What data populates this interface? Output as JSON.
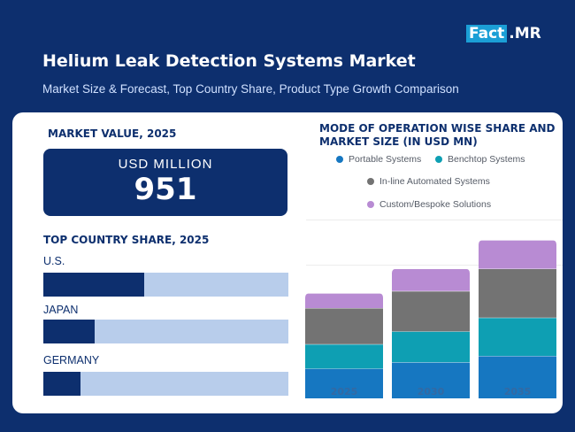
{
  "brand": {
    "logo_part1": "Fact",
    "logo_part2": ".MR"
  },
  "header": {
    "title": "Helium Leak Detection Systems Market",
    "subtitle": "Market Size & Forecast, Top Country Share, Product Type Growth Comparison"
  },
  "market_value": {
    "heading": "MARKET VALUE, 2025",
    "unit": "USD MILLION",
    "value": "951"
  },
  "country_share": {
    "heading": "TOP COUNTRY SHARE, 2025",
    "countries": [
      {
        "name": "U.S.",
        "share": 0.41
      },
      {
        "name": "JAPAN",
        "share": 0.21
      },
      {
        "name": "GERMANY",
        "share": 0.15
      }
    ]
  },
  "operation_chart": {
    "heading_line1": "MODE OF OPERATION WISE SHARE AND",
    "heading_line2": "MARKET SIZE (IN USD MN)"
  },
  "colors": {
    "navy": "#0d2f6e",
    "bar_track": "#b8cdeb",
    "portable": "#1677c1",
    "benchtop": "#0e9fb3",
    "inline": "#737373",
    "custom": "#b88bd3"
  },
  "chart_data": {
    "type": "bar",
    "stacked": true,
    "categories": [
      "2025",
      "2030",
      "2035"
    ],
    "series": [
      {
        "name": "Portable Systems",
        "color": "#1677c1",
        "values": [
          28,
          34,
          40
        ]
      },
      {
        "name": "Benchtop Systems",
        "color": "#0e9fb3",
        "values": [
          23,
          29,
          36
        ]
      },
      {
        "name": "In-line Automated Systems",
        "color": "#737373",
        "values": [
          34,
          38,
          46
        ]
      },
      {
        "name": "Custom/Bespoke Solutions",
        "color": "#b88bd3",
        "values": [
          14,
          21,
          27
        ]
      }
    ],
    "legend_position": "top",
    "grid": true,
    "xlabel": "",
    "ylabel": ""
  }
}
